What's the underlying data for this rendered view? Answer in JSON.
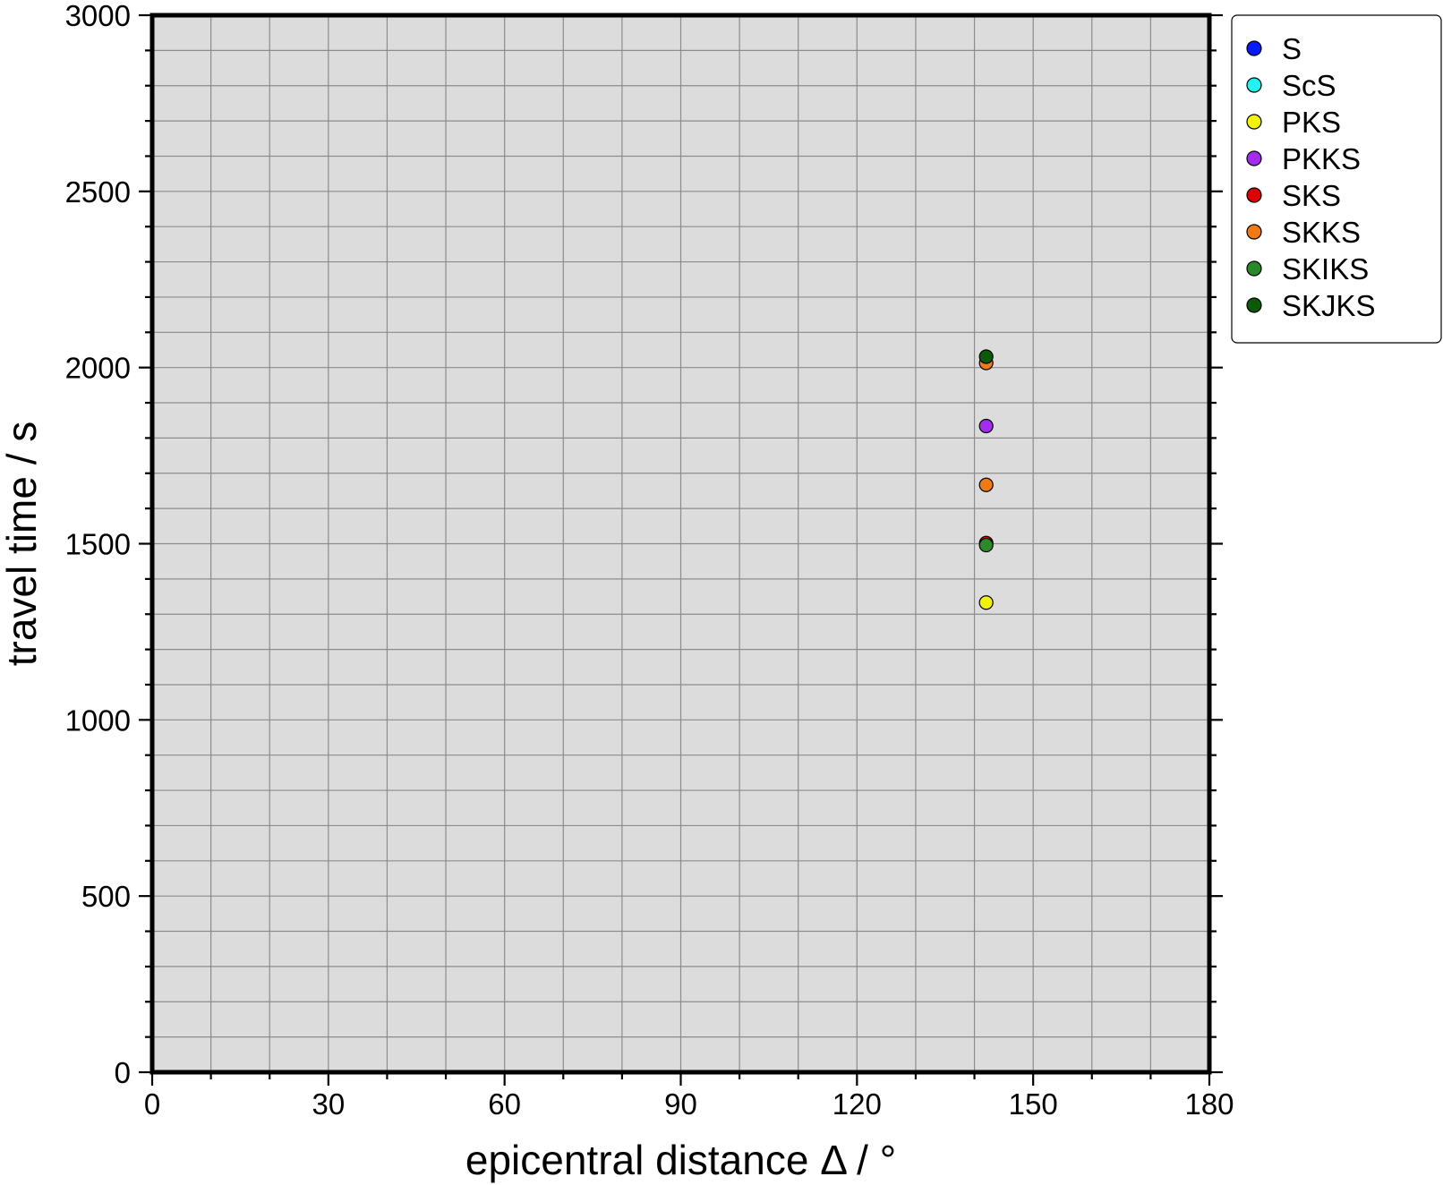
{
  "chart_data": {
    "type": "scatter",
    "xlabel": "epicentral distance Δ / °",
    "ylabel": "travel time / s",
    "xlim": [
      0,
      180
    ],
    "ylim": [
      0,
      3000
    ],
    "x_ticks": [
      0,
      30,
      60,
      90,
      120,
      150,
      180
    ],
    "y_ticks": [
      0,
      500,
      1000,
      1500,
      2000,
      2500,
      3000
    ],
    "x_ticks_labels": [
      "0",
      "30",
      "60",
      "90",
      "120",
      "150",
      "180"
    ],
    "y_ticks_labels": [
      "0",
      "500",
      "1000",
      "1500",
      "2000",
      "2500",
      "3000"
    ],
    "grid": true,
    "grid_x_step": 10,
    "grid_y_step": 100,
    "background": "#dcdcdc",
    "legend_position": "right",
    "series": [
      {
        "name": "S",
        "color": "#0a1aff",
        "points": []
      },
      {
        "name": "ScS",
        "color": "#22f2f2",
        "points": []
      },
      {
        "name": "PKS",
        "color": "#f2f20a",
        "points": [
          [
            142,
            1333
          ]
        ]
      },
      {
        "name": "PKKS",
        "color": "#a22cf0",
        "points": [
          [
            142,
            1834
          ]
        ]
      },
      {
        "name": "SKS",
        "color": "#dd0000",
        "points": [
          [
            142,
            1502
          ]
        ]
      },
      {
        "name": "SKKS",
        "color": "#f07a14",
        "points": [
          [
            142,
            1667
          ],
          [
            142,
            2013
          ]
        ]
      },
      {
        "name": "SKIKS",
        "color": "#2a8a2a",
        "points": [
          [
            142,
            1496
          ]
        ]
      },
      {
        "name": "SKJKS",
        "color": "#0a5a0a",
        "points": [
          [
            142,
            2031
          ]
        ]
      }
    ]
  }
}
